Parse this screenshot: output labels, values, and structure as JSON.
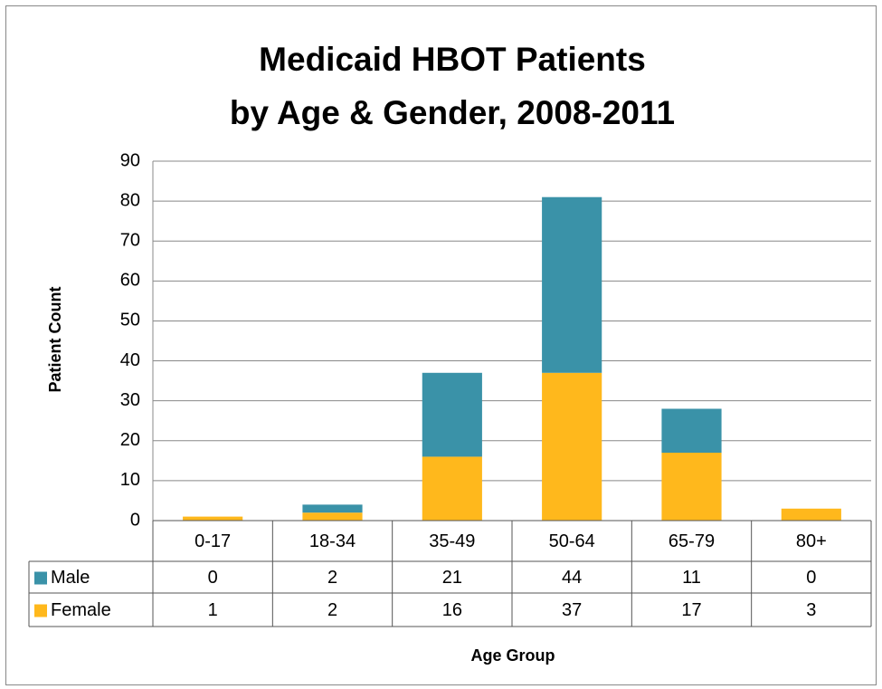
{
  "chart_data": {
    "type": "stacked_bar",
    "title": [
      "Medicaid HBOT Patients",
      "by Age & Gender, 2008-2011"
    ],
    "x_label": "Age Group",
    "y_label": "Patient Count",
    "categories": [
      "0-17",
      "18-34",
      "35-49",
      "50-64",
      "65-79",
      "80+"
    ],
    "series": [
      {
        "name": "Male",
        "color": "#3a92a8",
        "values": [
          0,
          2,
          21,
          44,
          11,
          0
        ]
      },
      {
        "name": "Female",
        "color": "#ffb81c",
        "values": [
          1,
          2,
          16,
          37,
          17,
          3
        ]
      }
    ],
    "ylim": [
      0,
      90
    ],
    "yticks": [
      0,
      10,
      20,
      30,
      40,
      50,
      60,
      70,
      80,
      90
    ],
    "grid": true
  }
}
